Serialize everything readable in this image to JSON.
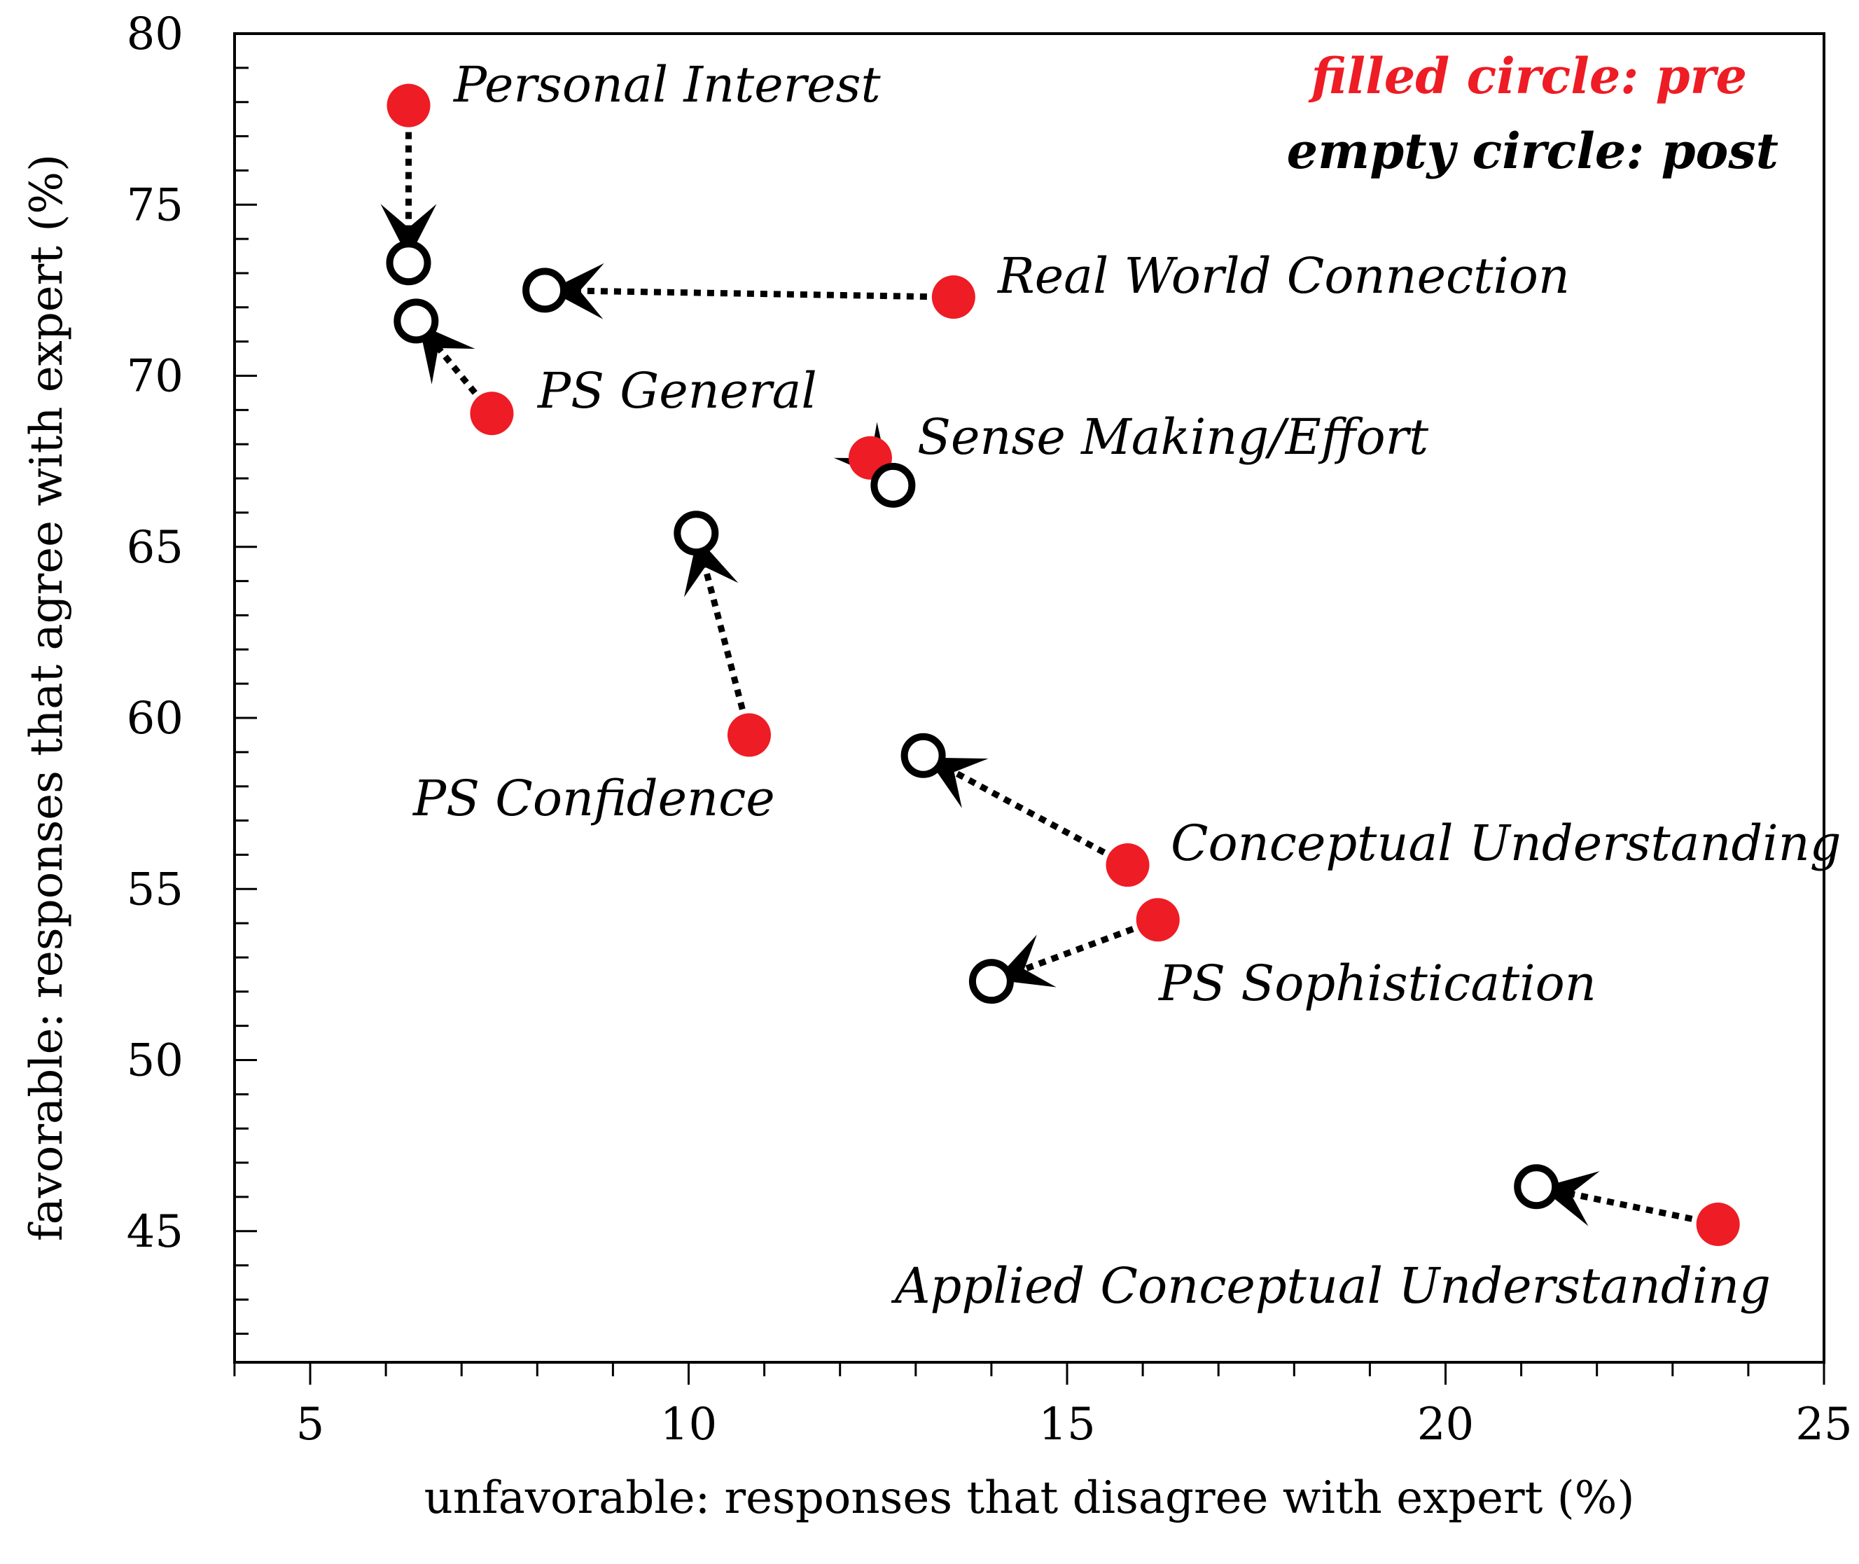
{
  "chart_data": {
    "type": "scatter",
    "title": "",
    "xlabel": "unfavorable: responses that disagree with expert (%)",
    "ylabel": "favorable: responses that agree with expert (%)",
    "xlim": [
      4,
      25
    ],
    "ylim": [
      40,
      80
    ],
    "x_ticks": [
      5,
      10,
      15,
      20,
      25
    ],
    "y_ticks": [
      45,
      50,
      55,
      60,
      65,
      70,
      75,
      80
    ],
    "x_ticks_text": [
      "5",
      "10",
      "15",
      "20",
      "25"
    ],
    "y_ticks_text": [
      "45",
      "50",
      "55",
      "60",
      "65",
      "70",
      "75",
      "80"
    ],
    "grid": false,
    "legend": {
      "pre": "filled circle: pre",
      "post": "empty circle: post",
      "pre_color": "#ee1c24",
      "post_color": "#000000",
      "placement": "top-right"
    },
    "series": [
      {
        "name": "Personal Interest",
        "pre": [
          6.3,
          77.9
        ],
        "post": [
          6.3,
          73.3
        ]
      },
      {
        "name": "Real World Connection",
        "pre": [
          13.5,
          72.3
        ],
        "post": [
          8.1,
          72.5
        ]
      },
      {
        "name": "PS General",
        "pre": [
          7.4,
          68.9
        ],
        "post": [
          6.4,
          71.6
        ]
      },
      {
        "name": "Sense Making/Effort",
        "pre": [
          12.4,
          67.6
        ],
        "post": [
          12.7,
          66.8
        ]
      },
      {
        "name": "PS Confidence",
        "pre": [
          10.8,
          59.5
        ],
        "post": [
          10.1,
          65.4
        ]
      },
      {
        "name": "Conceptual Understanding",
        "pre": [
          15.8,
          55.7
        ],
        "post": [
          13.1,
          58.9
        ]
      },
      {
        "name": "PS Sophistication",
        "pre": [
          16.2,
          54.1
        ],
        "post": [
          14.0,
          52.3
        ]
      },
      {
        "name": "Applied Conceptual Understanding",
        "pre": [
          23.6,
          45.2
        ],
        "post": [
          21.2,
          46.3
        ]
      }
    ]
  }
}
